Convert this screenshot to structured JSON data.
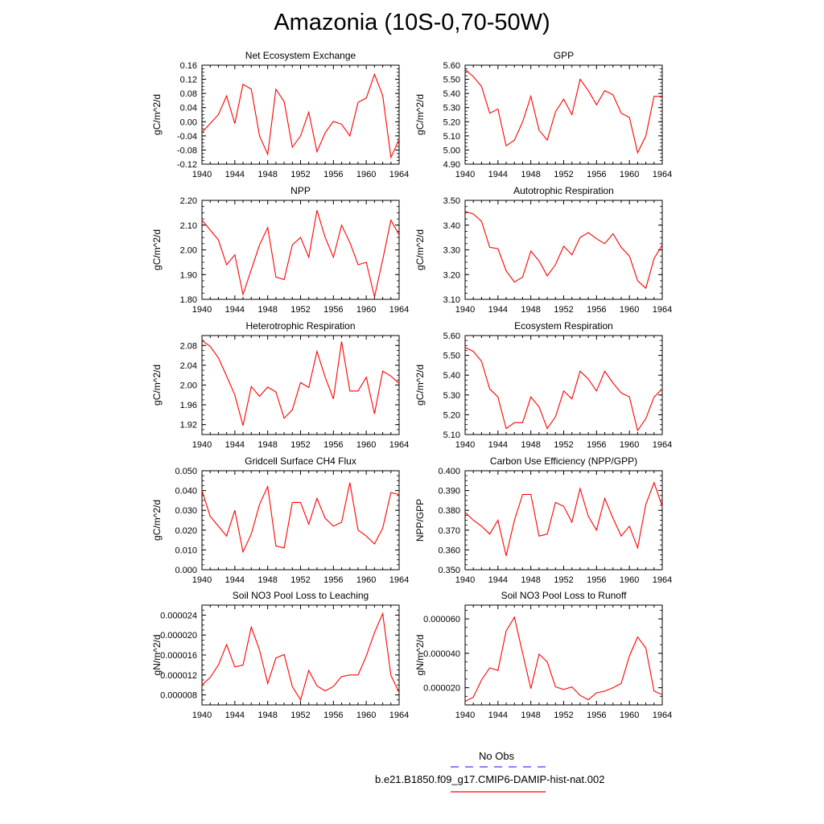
{
  "title": "Amazonia (10S-0,70-50W)",
  "legend": {
    "entries": [
      {
        "label": "No Obs",
        "color": "#3b3bff",
        "style": "dashed"
      },
      {
        "label": "b.e21.B1850.f09_g17.CMIP6-DAMIP-hist-nat.002",
        "color": "#ff0000",
        "style": "solid"
      }
    ]
  },
  "chart_data": [
    {
      "type": "line",
      "title": "Net Ecosystem Exchange",
      "ylabel": "gC/m^2/d",
      "xlim": [
        1940,
        1964
      ],
      "ylim": [
        -0.12,
        0.16
      ],
      "xticks": [
        "1940",
        "1944",
        "1948",
        "1952",
        "1956",
        "1960",
        "1964"
      ],
      "yticks": [
        "-0.12",
        "-0.08",
        "-0.04",
        "0.00",
        "0.04",
        "0.08",
        "0.12",
        "0.16"
      ],
      "color": "#ff0000",
      "x": [
        1940,
        1941,
        1942,
        1943,
        1944,
        1945,
        1946,
        1947,
        1948,
        1949,
        1950,
        1951,
        1952,
        1953,
        1954,
        1955,
        1956,
        1957,
        1958,
        1959,
        1960,
        1961,
        1962,
        1963,
        1964
      ],
      "y": [
        -0.03,
        -0.005,
        0.02,
        0.073,
        -0.005,
        0.106,
        0.092,
        -0.04,
        -0.092,
        0.092,
        0.057,
        -0.072,
        -0.04,
        0.027,
        -0.085,
        -0.031,
        0.001,
        -0.007,
        -0.04,
        0.055,
        0.067,
        0.134,
        0.074,
        -0.101,
        -0.05
      ]
    },
    {
      "type": "line",
      "title": "GPP",
      "ylabel": "gC/m^2/d",
      "xlim": [
        1940,
        1964
      ],
      "ylim": [
        4.9,
        5.6
      ],
      "xticks": [
        "1940",
        "1944",
        "1948",
        "1952",
        "1956",
        "1960",
        "1964"
      ],
      "yticks": [
        "4.90",
        "5.00",
        "5.10",
        "5.20",
        "5.30",
        "5.40",
        "5.50",
        "5.60"
      ],
      "color": "#ff0000",
      "x": [
        1940,
        1941,
        1942,
        1943,
        1944,
        1945,
        1946,
        1947,
        1948,
        1949,
        1950,
        1951,
        1952,
        1953,
        1954,
        1955,
        1956,
        1957,
        1958,
        1959,
        1960,
        1961,
        1962,
        1963,
        1964
      ],
      "y": [
        5.57,
        5.52,
        5.45,
        5.26,
        5.29,
        5.03,
        5.07,
        5.2,
        5.38,
        5.14,
        5.07,
        5.27,
        5.36,
        5.25,
        5.5,
        5.42,
        5.32,
        5.42,
        5.39,
        5.26,
        5.23,
        4.98,
        5.1,
        5.38,
        5.38
      ]
    },
    {
      "type": "line",
      "title": "NPP",
      "ylabel": "gC/m^2/d",
      "xlim": [
        1940,
        1964
      ],
      "ylim": [
        1.8,
        2.2
      ],
      "xticks": [
        "1940",
        "1944",
        "1948",
        "1952",
        "1956",
        "1960",
        "1964"
      ],
      "yticks": [
        "1.80",
        "1.90",
        "2.00",
        "2.10",
        "2.20"
      ],
      "color": "#ff0000",
      "x": [
        1940,
        1941,
        1942,
        1943,
        1944,
        1945,
        1946,
        1947,
        1948,
        1949,
        1950,
        1951,
        1952,
        1953,
        1954,
        1955,
        1956,
        1957,
        1958,
        1959,
        1960,
        1961,
        1962,
        1963,
        1964
      ],
      "y": [
        2.12,
        2.08,
        2.04,
        1.94,
        1.98,
        1.82,
        1.92,
        2.02,
        2.09,
        1.89,
        1.88,
        2.02,
        2.05,
        1.97,
        2.16,
        2.05,
        1.97,
        2.1,
        2.03,
        1.94,
        1.95,
        1.81,
        1.96,
        2.12,
        2.06
      ]
    },
    {
      "type": "line",
      "title": "Autotrophic Respiration",
      "ylabel": "gC/m^2/d",
      "xlim": [
        1940,
        1964
      ],
      "ylim": [
        3.1,
        3.5
      ],
      "xticks": [
        "1940",
        "1944",
        "1948",
        "1952",
        "1956",
        "1960",
        "1964"
      ],
      "yticks": [
        "3.10",
        "3.20",
        "3.30",
        "3.40",
        "3.50"
      ],
      "color": "#ff0000",
      "x": [
        1940,
        1941,
        1942,
        1943,
        1944,
        1945,
        1946,
        1947,
        1948,
        1949,
        1950,
        1951,
        1952,
        1953,
        1954,
        1955,
        1956,
        1957,
        1958,
        1959,
        1960,
        1961,
        1962,
        1963,
        1964
      ],
      "y": [
        3.455,
        3.445,
        3.415,
        3.31,
        3.305,
        3.215,
        3.17,
        3.19,
        3.295,
        3.255,
        3.195,
        3.24,
        3.315,
        3.28,
        3.35,
        3.37,
        3.345,
        3.325,
        3.365,
        3.31,
        3.275,
        3.175,
        3.145,
        3.265,
        3.32
      ]
    },
    {
      "type": "line",
      "title": "Heterotrophic Respiration",
      "ylabel": "gC/m^2/d",
      "xlim": [
        1940,
        1964
      ],
      "ylim": [
        1.9,
        2.1
      ],
      "xticks": [
        "1940",
        "1944",
        "1948",
        "1952",
        "1956",
        "1960",
        "1964"
      ],
      "yticks": [
        "1.92",
        "1.96",
        "2.00",
        "2.04",
        "2.08"
      ],
      "color": "#ff0000",
      "x": [
        1940,
        1941,
        1942,
        1943,
        1944,
        1945,
        1946,
        1947,
        1948,
        1949,
        1950,
        1951,
        1952,
        1953,
        1954,
        1955,
        1956,
        1957,
        1958,
        1959,
        1960,
        1961,
        1962,
        1963,
        1964
      ],
      "y": [
        2.09,
        2.078,
        2.055,
        2.018,
        1.98,
        1.918,
        1.997,
        1.977,
        1.996,
        1.986,
        1.933,
        1.95,
        2.005,
        1.995,
        2.068,
        2.016,
        1.972,
        2.088,
        1.988,
        1.988,
        2.016,
        1.942,
        2.028,
        2.018,
        2.003
      ]
    },
    {
      "type": "line",
      "title": "Ecosystem Respiration",
      "ylabel": "gC/m^2/d",
      "xlim": [
        1940,
        1964
      ],
      "ylim": [
        5.1,
        5.6
      ],
      "xticks": [
        "1940",
        "1944",
        "1948",
        "1952",
        "1956",
        "1960",
        "1964"
      ],
      "yticks": [
        "5.10",
        "5.20",
        "5.30",
        "5.40",
        "5.50",
        "5.60"
      ],
      "color": "#ff0000",
      "x": [
        1940,
        1941,
        1942,
        1943,
        1944,
        1945,
        1946,
        1947,
        1948,
        1949,
        1950,
        1951,
        1952,
        1953,
        1954,
        1955,
        1956,
        1957,
        1958,
        1959,
        1960,
        1961,
        1962,
        1963,
        1964
      ],
      "y": [
        5.54,
        5.52,
        5.47,
        5.33,
        5.29,
        5.13,
        5.16,
        5.16,
        5.29,
        5.24,
        5.13,
        5.19,
        5.32,
        5.28,
        5.42,
        5.38,
        5.32,
        5.42,
        5.36,
        5.31,
        5.29,
        5.12,
        5.18,
        5.29,
        5.33
      ]
    },
    {
      "type": "line",
      "title": "Gridcell Surface CH4 Flux",
      "ylabel": "gC/m^2/d",
      "xlim": [
        1940,
        1964
      ],
      "ylim": [
        0.0,
        0.05
      ],
      "xticks": [
        "1940",
        "1944",
        "1948",
        "1952",
        "1956",
        "1960",
        "1964"
      ],
      "yticks": [
        "0.000",
        "0.010",
        "0.020",
        "0.030",
        "0.040",
        "0.050"
      ],
      "color": "#ff0000",
      "x": [
        1940,
        1941,
        1942,
        1943,
        1944,
        1945,
        1946,
        1947,
        1948,
        1949,
        1950,
        1951,
        1952,
        1953,
        1954,
        1955,
        1956,
        1957,
        1958,
        1959,
        1960,
        1961,
        1962,
        1963,
        1964
      ],
      "y": [
        0.04,
        0.027,
        0.022,
        0.017,
        0.03,
        0.009,
        0.018,
        0.033,
        0.042,
        0.012,
        0.011,
        0.034,
        0.034,
        0.023,
        0.036,
        0.026,
        0.022,
        0.024,
        0.044,
        0.02,
        0.017,
        0.013,
        0.021,
        0.039,
        0.038
      ]
    },
    {
      "type": "line",
      "title": "Carbon Use Efficiency (NPP/GPP)",
      "ylabel": "NPP/GPP",
      "xlim": [
        1940,
        1964
      ],
      "ylim": [
        0.35,
        0.4
      ],
      "xticks": [
        "1940",
        "1944",
        "1948",
        "1952",
        "1956",
        "1960",
        "1964"
      ],
      "yticks": [
        "0.350",
        "0.360",
        "0.370",
        "0.380",
        "0.390",
        "0.400"
      ],
      "color": "#ff0000",
      "x": [
        1940,
        1941,
        1942,
        1943,
        1944,
        1945,
        1946,
        1947,
        1948,
        1949,
        1950,
        1951,
        1952,
        1953,
        1954,
        1955,
        1956,
        1957,
        1958,
        1959,
        1960,
        1961,
        1962,
        1963,
        1964
      ],
      "y": [
        0.379,
        0.375,
        0.372,
        0.368,
        0.375,
        0.357,
        0.375,
        0.388,
        0.388,
        0.367,
        0.368,
        0.384,
        0.382,
        0.374,
        0.391,
        0.377,
        0.37,
        0.386,
        0.376,
        0.367,
        0.372,
        0.361,
        0.383,
        0.394,
        0.382
      ]
    },
    {
      "type": "line",
      "title": "Soil NO3 Pool Loss to Leaching",
      "ylabel": "gN/m^2/d",
      "xlim": [
        1940,
        1964
      ],
      "ylim": [
        6e-06,
        2.6e-05
      ],
      "xticks": [
        "1940",
        "1944",
        "1948",
        "1952",
        "1956",
        "1960",
        "1964"
      ],
      "yticks": [
        "0.000008",
        "0.000012",
        "0.000016",
        "0.000020",
        "0.000024"
      ],
      "color": "#ff0000",
      "x": [
        1940,
        1941,
        1942,
        1943,
        1944,
        1945,
        1946,
        1947,
        1948,
        1949,
        1950,
        1951,
        1952,
        1953,
        1954,
        1955,
        1956,
        1957,
        1958,
        1959,
        1960,
        1961,
        1962,
        1963,
        1964
      ],
      "y": [
        1e-05,
        1.15e-05,
        1.4e-05,
        1.81e-05,
        1.36e-05,
        1.4e-05,
        2.16e-05,
        1.7e-05,
        1.03e-05,
        1.54e-05,
        1.61e-05,
        9.7e-06,
        7e-06,
        1.29e-05,
        9.8e-06,
        8.8e-06,
        9.7e-06,
        1.17e-05,
        1.2e-05,
        1.2e-05,
        1.58e-05,
        2.05e-05,
        2.43e-05,
        1.19e-05,
        8.5e-06
      ]
    },
    {
      "type": "line",
      "title": "Soil NO3 Pool Loss to Runoff",
      "ylabel": "gN/m^2/d",
      "xlim": [
        1940,
        1964
      ],
      "ylim": [
        1e-05,
        6.8e-05
      ],
      "xticks": [
        "1940",
        "1944",
        "1948",
        "1952",
        "1956",
        "1960",
        "1964"
      ],
      "yticks": [
        "0.000020",
        "0.000040",
        "0.000060"
      ],
      "color": "#ff0000",
      "x": [
        1940,
        1941,
        1942,
        1943,
        1944,
        1945,
        1946,
        1947,
        1948,
        1949,
        1950,
        1951,
        1952,
        1953,
        1954,
        1955,
        1956,
        1957,
        1958,
        1959,
        1960,
        1961,
        1962,
        1963,
        1964
      ],
      "y": [
        1.2e-05,
        1.45e-05,
        2.45e-05,
        3.15e-05,
        3e-05,
        5.3e-05,
        6.1e-05,
        4e-05,
        1.95e-05,
        3.95e-05,
        3.5e-05,
        2.05e-05,
        1.9e-05,
        2.05e-05,
        1.55e-05,
        1.3e-05,
        1.7e-05,
        1.8e-05,
        2e-05,
        2.25e-05,
        3.85e-05,
        4.95e-05,
        4.3e-05,
        1.8e-05,
        1.6e-05
      ]
    }
  ]
}
